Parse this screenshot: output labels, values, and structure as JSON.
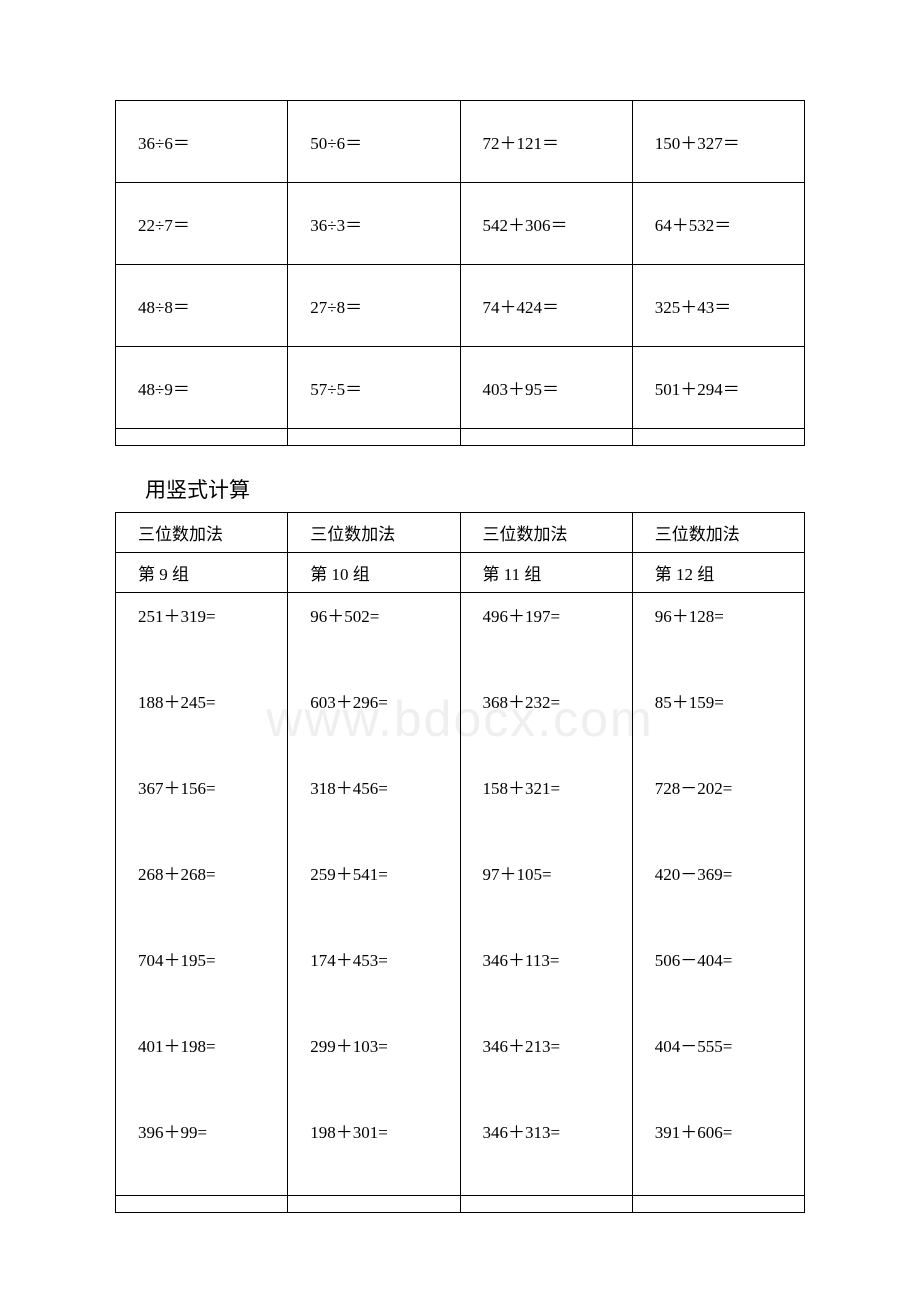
{
  "watermark": "www.bdocx.com",
  "heading": "用竖式计算",
  "table1": {
    "border_color": "#000000",
    "font_size": 17,
    "rows": [
      [
        "36÷6＝",
        "50÷6＝",
        "72＋121＝",
        "150＋327＝"
      ],
      [
        "22÷7＝",
        "36÷3＝",
        "542＋306＝",
        "64＋532＝"
      ],
      [
        "48÷8＝",
        "27÷8＝",
        "74＋424＝",
        "325＋43＝"
      ],
      [
        "48÷9＝",
        "57÷5＝",
        "403＋95＝",
        "501＋294＝"
      ]
    ]
  },
  "table2": {
    "border_color": "#000000",
    "font_size": 17,
    "headers": [
      "三位数加法",
      "三位数加法",
      "三位数加法",
      "三位数加法"
    ],
    "groups": [
      "第 9 组",
      "第 10 组",
      "第 11 组",
      "第 12 组"
    ],
    "columns": [
      [
        "251＋319=",
        "188＋245=",
        "367＋156=",
        "268＋268=",
        "704＋195=",
        "401＋198=",
        "396＋99="
      ],
      [
        "96＋502=",
        "603＋296=",
        "318＋456=",
        "259＋541=",
        "174＋453=",
        "299＋103=",
        "198＋301="
      ],
      [
        "496＋197=",
        "368＋232=",
        "158＋321=",
        "97＋105=",
        "346＋113=",
        "346＋213=",
        "346＋313="
      ],
      [
        "96＋128=",
        "85＋159=",
        "728－202=",
        "420－369=",
        "506－404=",
        "404－555=",
        "391＋606="
      ]
    ]
  }
}
